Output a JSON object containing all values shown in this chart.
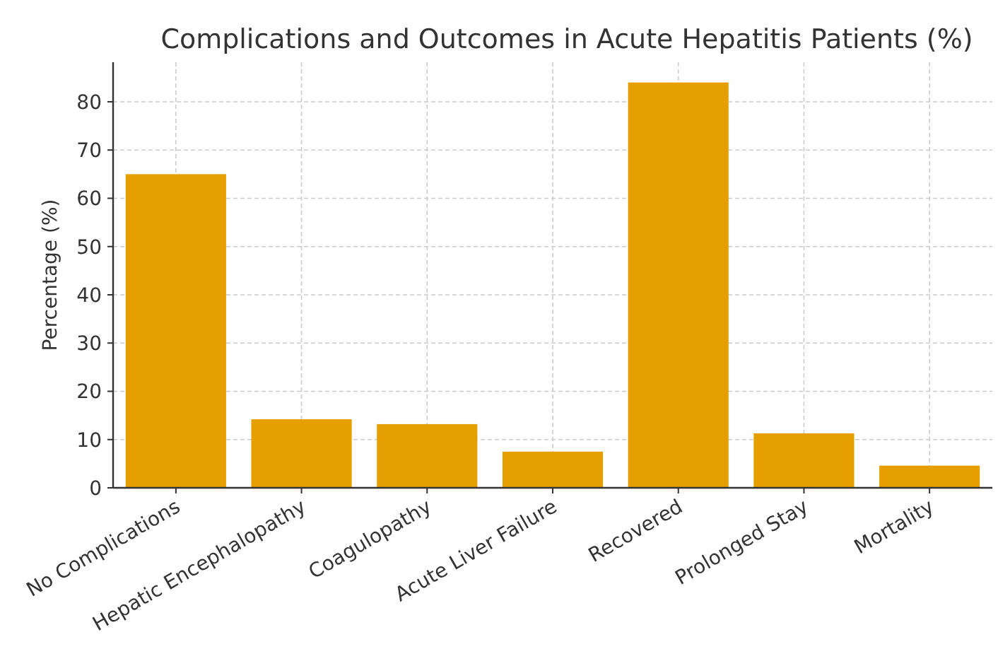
{
  "chart_data": {
    "type": "bar",
    "title": "Complications and Outcomes in Acute Hepatitis Patients (%)",
    "ylabel": "Percentage (%)",
    "categories": [
      "No Complications",
      "Hepatic Encephalopathy",
      "Coagulopathy",
      "Acute Liver Failure",
      "Recovered",
      "Prolonged Stay",
      "Mortality"
    ],
    "values": [
      65,
      14.2,
      13.2,
      7.5,
      84,
      11.3,
      4.6
    ],
    "color": "#e69f00",
    "ylim": [
      0,
      88.2
    ],
    "yticks": [
      0,
      10,
      20,
      30,
      40,
      50,
      60,
      70,
      80
    ],
    "grid": true
  }
}
